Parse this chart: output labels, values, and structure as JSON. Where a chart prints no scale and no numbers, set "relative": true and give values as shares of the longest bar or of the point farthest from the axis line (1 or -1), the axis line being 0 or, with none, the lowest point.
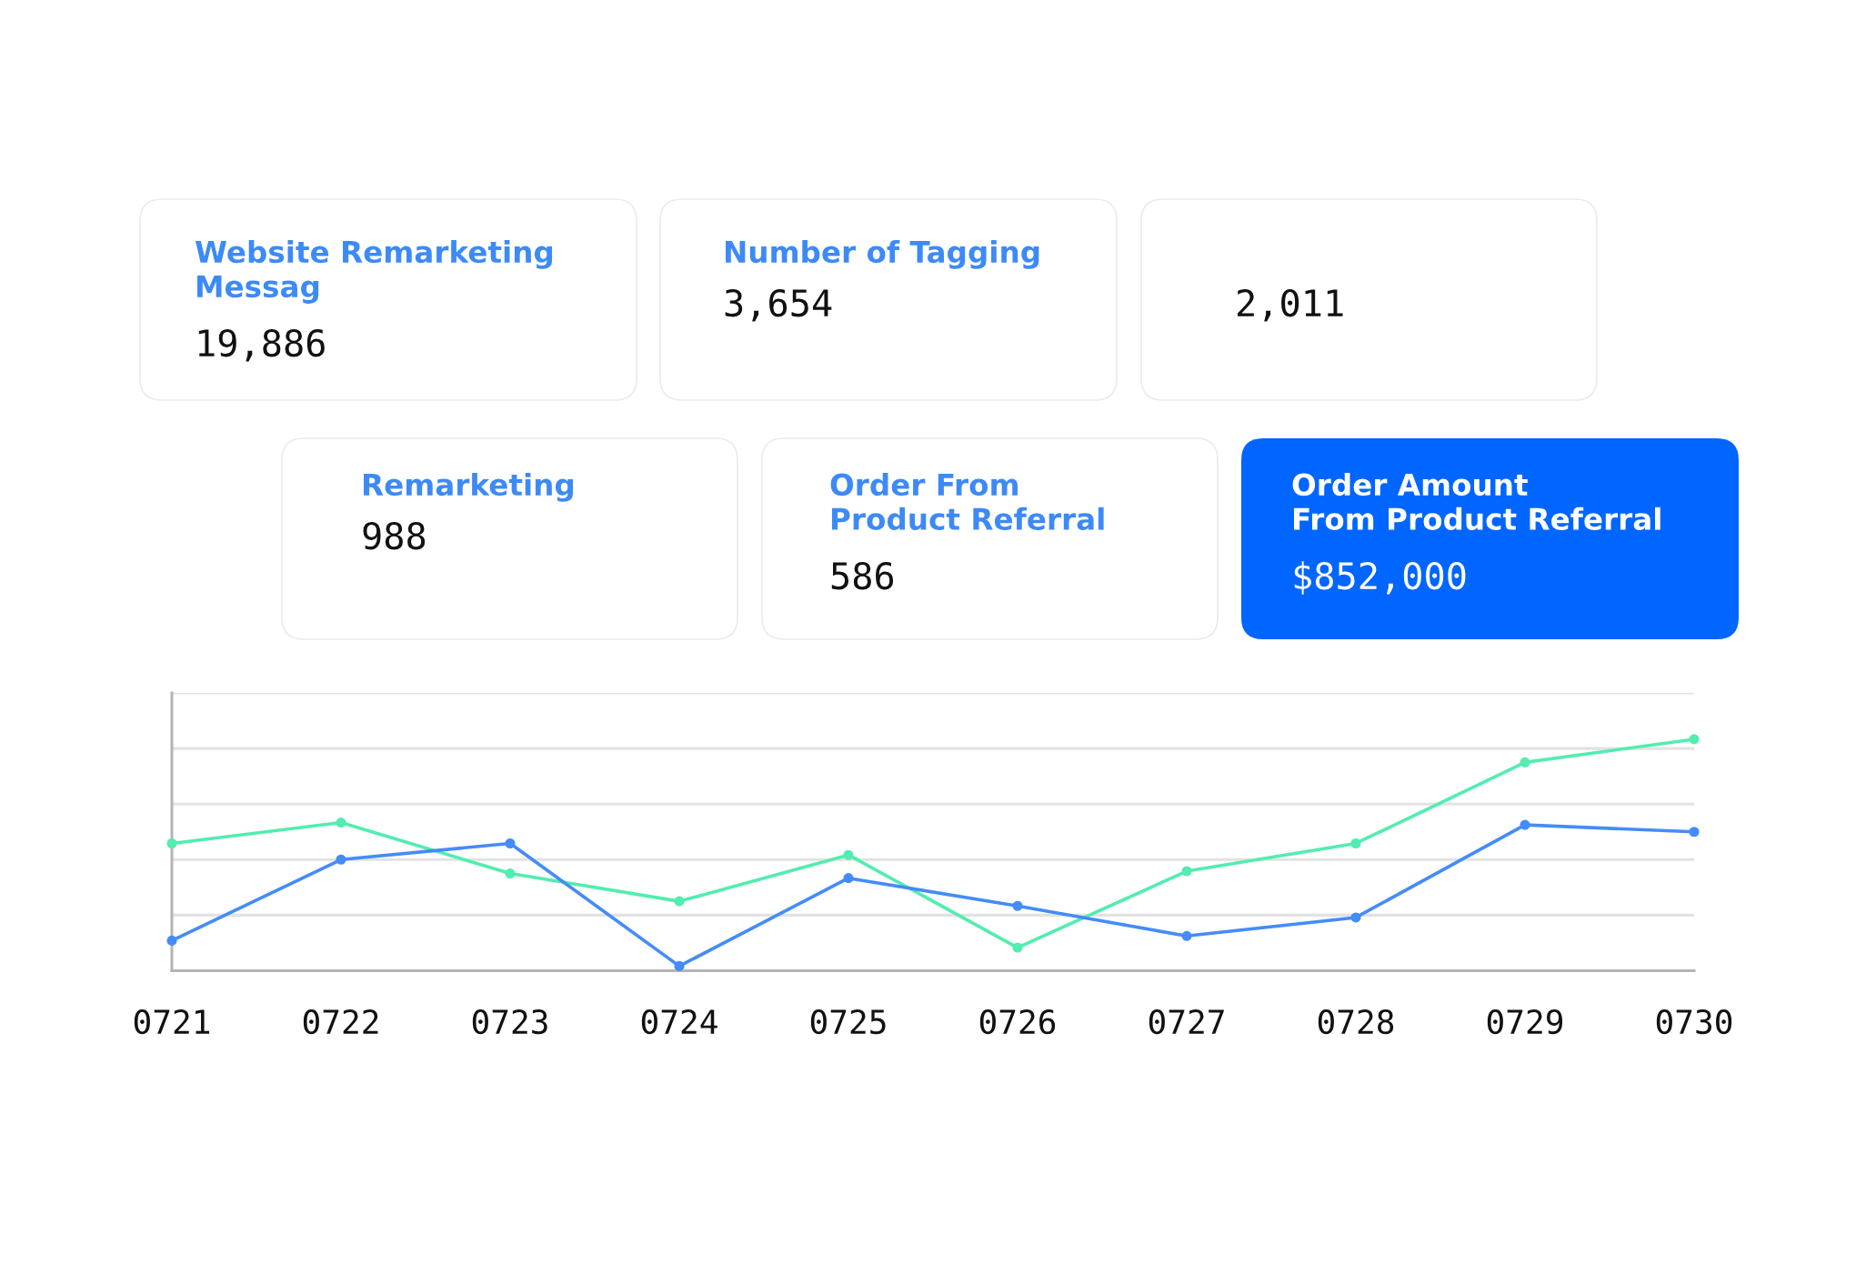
{
  "chart_data": [
    {
      "type": "other",
      "title": "Website Remarketing\nMessag",
      "annotations": [
        "19,886"
      ]
    },
    {
      "type": "other",
      "title": "Number of Tagging",
      "annotations": [
        "3,654"
      ]
    },
    {
      "type": "other",
      "annotations": [
        "2,011"
      ]
    },
    {
      "type": "other",
      "title": "Remarketing",
      "annotations": [
        "988"
      ]
    },
    {
      "type": "other",
      "title": "Order From\nProduct Referral",
      "annotations": [
        "586"
      ]
    },
    {
      "type": "other",
      "title": "Order Amount\nFrom Product Referral",
      "annotations": [
        "$852,000"
      ],
      "color": "#0066ff"
    },
    {
      "type": "line",
      "categories": [
        "0721",
        "0722",
        "0723",
        "0724",
        "0725",
        "0726",
        "0727",
        "0728",
        "0729",
        "0730"
      ],
      "relative": true,
      "marker": "circle",
      "line_style": "solid",
      "grid": "y",
      "series": [
        {
          "color": "#52edb0",
          "values": [
            0.55,
            0.64,
            0.42,
            0.3,
            0.5,
            0.1,
            0.43,
            0.55,
            0.9,
            1.0
          ]
        },
        {
          "color": "#448cf8",
          "values": [
            0.13,
            0.48,
            0.55,
            0.02,
            0.4,
            0.28,
            0.15,
            0.23,
            0.63,
            0.6
          ]
        }
      ]
    }
  ]
}
